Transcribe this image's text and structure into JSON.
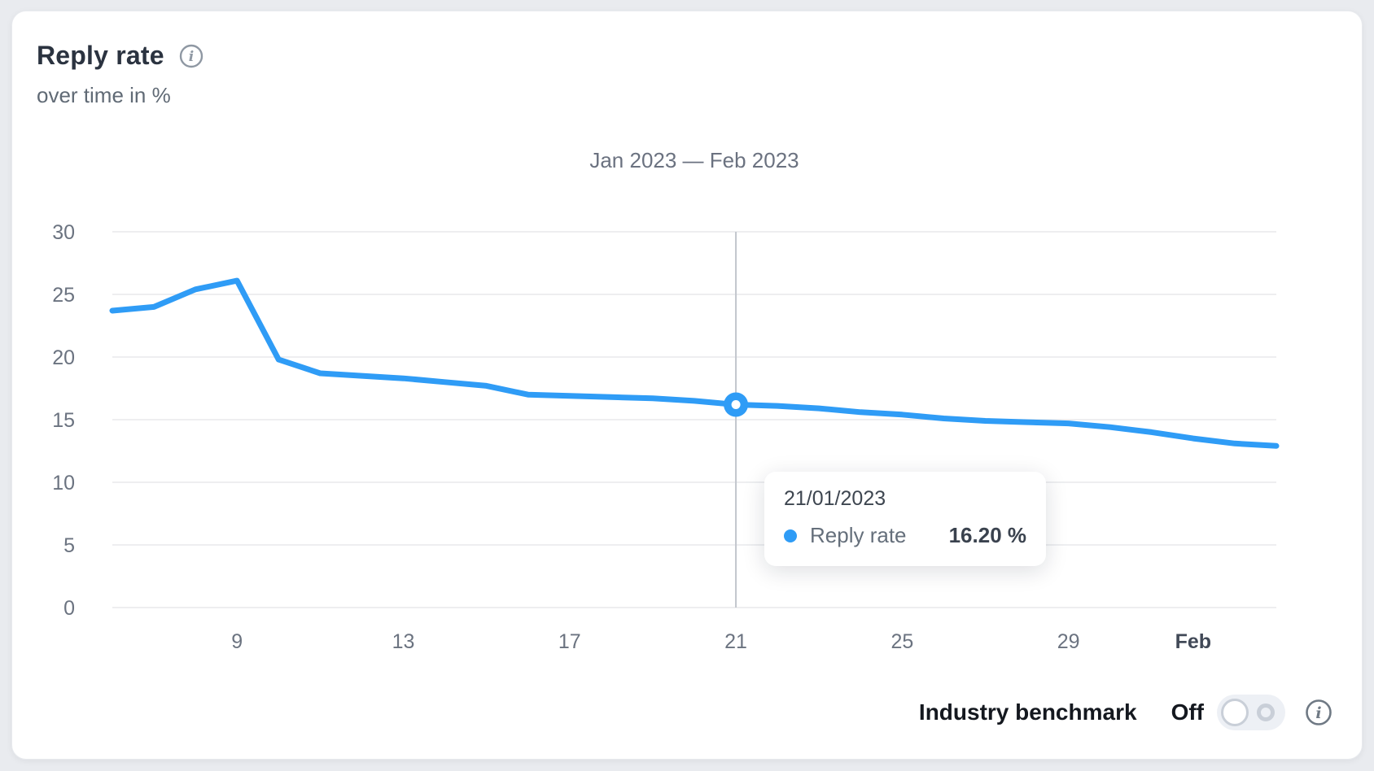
{
  "header": {
    "title": "Reply rate",
    "subtitle": "over time in %"
  },
  "chart_data": {
    "type": "line",
    "title": "Jan 2023 — Feb 2023",
    "xlabel": "",
    "ylabel": "over time in %",
    "ylim": [
      0,
      30
    ],
    "grid": true,
    "y_ticks": [
      0,
      5,
      10,
      15,
      20,
      25,
      30
    ],
    "x_days": [
      6,
      7,
      8,
      9,
      10,
      11,
      12,
      13,
      14,
      15,
      16,
      17,
      18,
      19,
      20,
      21,
      22,
      23,
      24,
      25,
      26,
      27,
      28,
      29,
      30,
      31,
      32,
      33,
      34
    ],
    "x_ticks": [
      {
        "day": 9,
        "label": "9",
        "bold": false
      },
      {
        "day": 13,
        "label": "13",
        "bold": false
      },
      {
        "day": 17,
        "label": "17",
        "bold": false
      },
      {
        "day": 21,
        "label": "21",
        "bold": false
      },
      {
        "day": 25,
        "label": "25",
        "bold": false
      },
      {
        "day": 29,
        "label": "29",
        "bold": false
      },
      {
        "day": 32,
        "label": "Feb",
        "bold": true
      }
    ],
    "series": [
      {
        "name": "Reply rate",
        "values": [
          23.7,
          24.0,
          25.4,
          26.1,
          19.8,
          18.7,
          18.5,
          18.3,
          18.0,
          17.7,
          17.0,
          16.9,
          16.8,
          16.7,
          16.5,
          16.2,
          16.1,
          15.9,
          15.6,
          15.4,
          15.1,
          14.9,
          14.8,
          14.7,
          14.4,
          14.0,
          13.5,
          13.1,
          12.9
        ]
      }
    ],
    "highlight": {
      "day": 21,
      "value": 16.2
    },
    "colors": {
      "line": "#2f9cf6",
      "grid": "#e8e9ec",
      "crosshair": "#c2c6cd",
      "axis_text": "#6b7380",
      "axis_text_bold": "#414957"
    }
  },
  "tooltip": {
    "date": "21/01/2023",
    "series_label": "Reply rate",
    "value": "16.20 %",
    "dot_color": "#2f9cf6"
  },
  "footer": {
    "benchmark_label": "Industry benchmark",
    "toggle_state": "Off"
  }
}
